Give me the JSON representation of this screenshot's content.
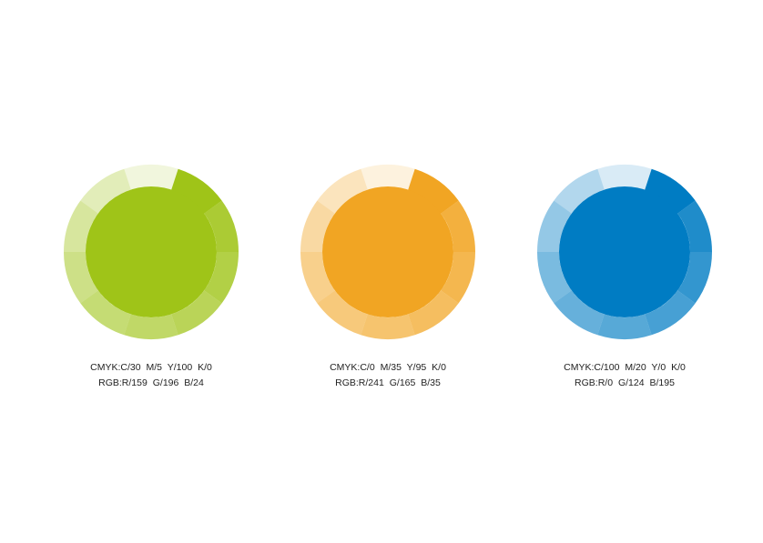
{
  "swatches": [
    {
      "color": "#9fc418",
      "cmyk": "CMYK:C/30  M/5  Y/100  K/0",
      "rgb": "RGB:R/159  G/196  B/24"
    },
    {
      "color": "#f1a523",
      "cmyk": "CMYK:C/0  M/35  Y/95  K/0",
      "rgb": "RGB:R/241  G/165  B/35"
    },
    {
      "color": "#007cc3",
      "cmyk": "CMYK:C/100  M/20  Y/0  K/0",
      "rgb": "RGB:R/0  G/124  B/195"
    }
  ]
}
